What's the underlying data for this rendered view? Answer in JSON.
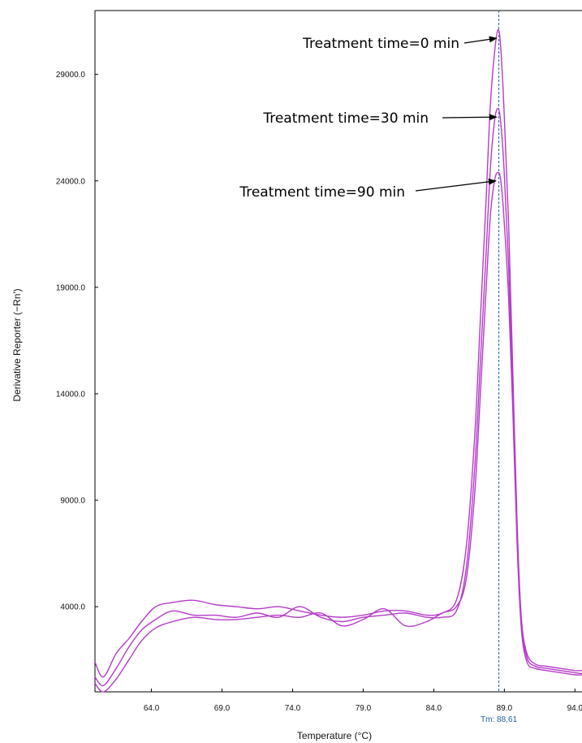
{
  "chart_data": {
    "type": "line",
    "title": "",
    "xlabel": "Temperature (°C)",
    "ylabel": "Derivative Reporter (−Rn')",
    "xlim": [
      60.0,
      94.5
    ],
    "ylim": [
      0,
      32000
    ],
    "x_ticks": [
      64.0,
      69.0,
      74.0,
      79.0,
      84.0,
      89.0,
      94.0
    ],
    "x_tick_labels": [
      "64.0",
      "69.0",
      "74.0",
      "79.0",
      "84.0",
      "89.0",
      "94.0"
    ],
    "y_ticks": [
      4000,
      9000,
      14000,
      19000,
      24000,
      29000
    ],
    "y_tick_labels": [
      "4000.0",
      "9000.0",
      "14000.0",
      "19000.0",
      "24000.0",
      "29000.0"
    ],
    "grid": false,
    "line_color": "#b43cc8",
    "marker_color": "#1f5fa8",
    "tm_marker": {
      "x": 88.61,
      "label": "Tm: 88,61"
    },
    "series": [
      {
        "x": [
          60.0,
          60.6,
          61.5,
          62.4,
          63.3,
          64.3,
          65.5,
          67.0,
          68.5,
          70.0,
          71.5,
          73.0,
          74.5,
          76.0,
          77.5,
          79.0,
          80.5,
          82.0,
          83.5,
          84.6,
          85.6,
          86.3,
          86.9,
          87.3,
          87.7,
          88.0,
          88.3,
          88.55,
          88.75,
          89.0,
          89.3,
          89.6,
          89.9,
          90.2,
          90.6,
          91.2,
          92.0,
          93.0,
          94.0,
          94.5
        ],
        "y": [
          1400,
          700,
          1800,
          2500,
          3300,
          4000,
          4200,
          4300,
          4100,
          4000,
          3900,
          4000,
          3800,
          3600,
          3500,
          3600,
          3800,
          3800,
          3600,
          3700,
          4300,
          6800,
          12000,
          17500,
          23000,
          27500,
          30000,
          31100,
          30200,
          27000,
          22000,
          15000,
          8000,
          3500,
          1800,
          1300,
          1200,
          1100,
          1000,
          1000
        ]
      },
      {
        "x": [
          60.0,
          60.6,
          61.5,
          62.4,
          63.3,
          64.3,
          65.5,
          67.0,
          68.5,
          70.0,
          71.5,
          73.0,
          74.5,
          76.0,
          77.5,
          79.0,
          80.5,
          82.0,
          83.5,
          84.6,
          85.6,
          86.3,
          86.9,
          87.3,
          87.7,
          88.0,
          88.3,
          88.55,
          88.75,
          89.0,
          89.3,
          89.6,
          89.9,
          90.2,
          90.6,
          91.2,
          92.0,
          93.0,
          94.0,
          94.5
        ],
        "y": [
          700,
          300,
          1100,
          2100,
          2900,
          3400,
          3800,
          3600,
          3600,
          3500,
          3700,
          3500,
          4000,
          3500,
          3300,
          3500,
          3600,
          3700,
          3500,
          3500,
          3800,
          5800,
          10500,
          15500,
          20500,
          24500,
          26800,
          27400,
          26700,
          24300,
          20000,
          14000,
          7500,
          3300,
          1600,
          1200,
          1100,
          1000,
          900,
          850
        ]
      },
      {
        "x": [
          60.0,
          60.6,
          61.5,
          62.4,
          63.3,
          64.3,
          65.5,
          67.0,
          68.5,
          70.0,
          71.5,
          73.0,
          74.5,
          76.0,
          77.5,
          79.0,
          80.5,
          82.0,
          83.5,
          84.6,
          85.6,
          86.3,
          86.9,
          87.3,
          87.7,
          88.0,
          88.3,
          88.55,
          88.75,
          89.0,
          89.3,
          89.6,
          89.9,
          90.2,
          90.6,
          91.2,
          92.0,
          93.0,
          94.0,
          94.5
        ],
        "y": [
          400,
          0,
          600,
          1500,
          2400,
          3000,
          3300,
          3500,
          3400,
          3400,
          3500,
          3600,
          3500,
          3700,
          3100,
          3400,
          3900,
          3100,
          3300,
          3700,
          4000,
          5300,
          9300,
          14000,
          18800,
          22300,
          24000,
          24400,
          24000,
          22000,
          18500,
          13200,
          7000,
          3000,
          1400,
          1100,
          1000,
          900,
          800,
          800
        ]
      }
    ],
    "annotations": [
      {
        "text": "Treatment time=0 min",
        "target_x": 88.45,
        "target_y": 30700,
        "arrow_from": "text-right"
      },
      {
        "text": "Treatment time=30 min",
        "target_x": 88.45,
        "target_y": 27000,
        "arrow_from": "text-right"
      },
      {
        "text": "Treatment time=90 min",
        "target_x": 88.4,
        "target_y": 24000,
        "arrow_from": "text-right"
      }
    ]
  }
}
